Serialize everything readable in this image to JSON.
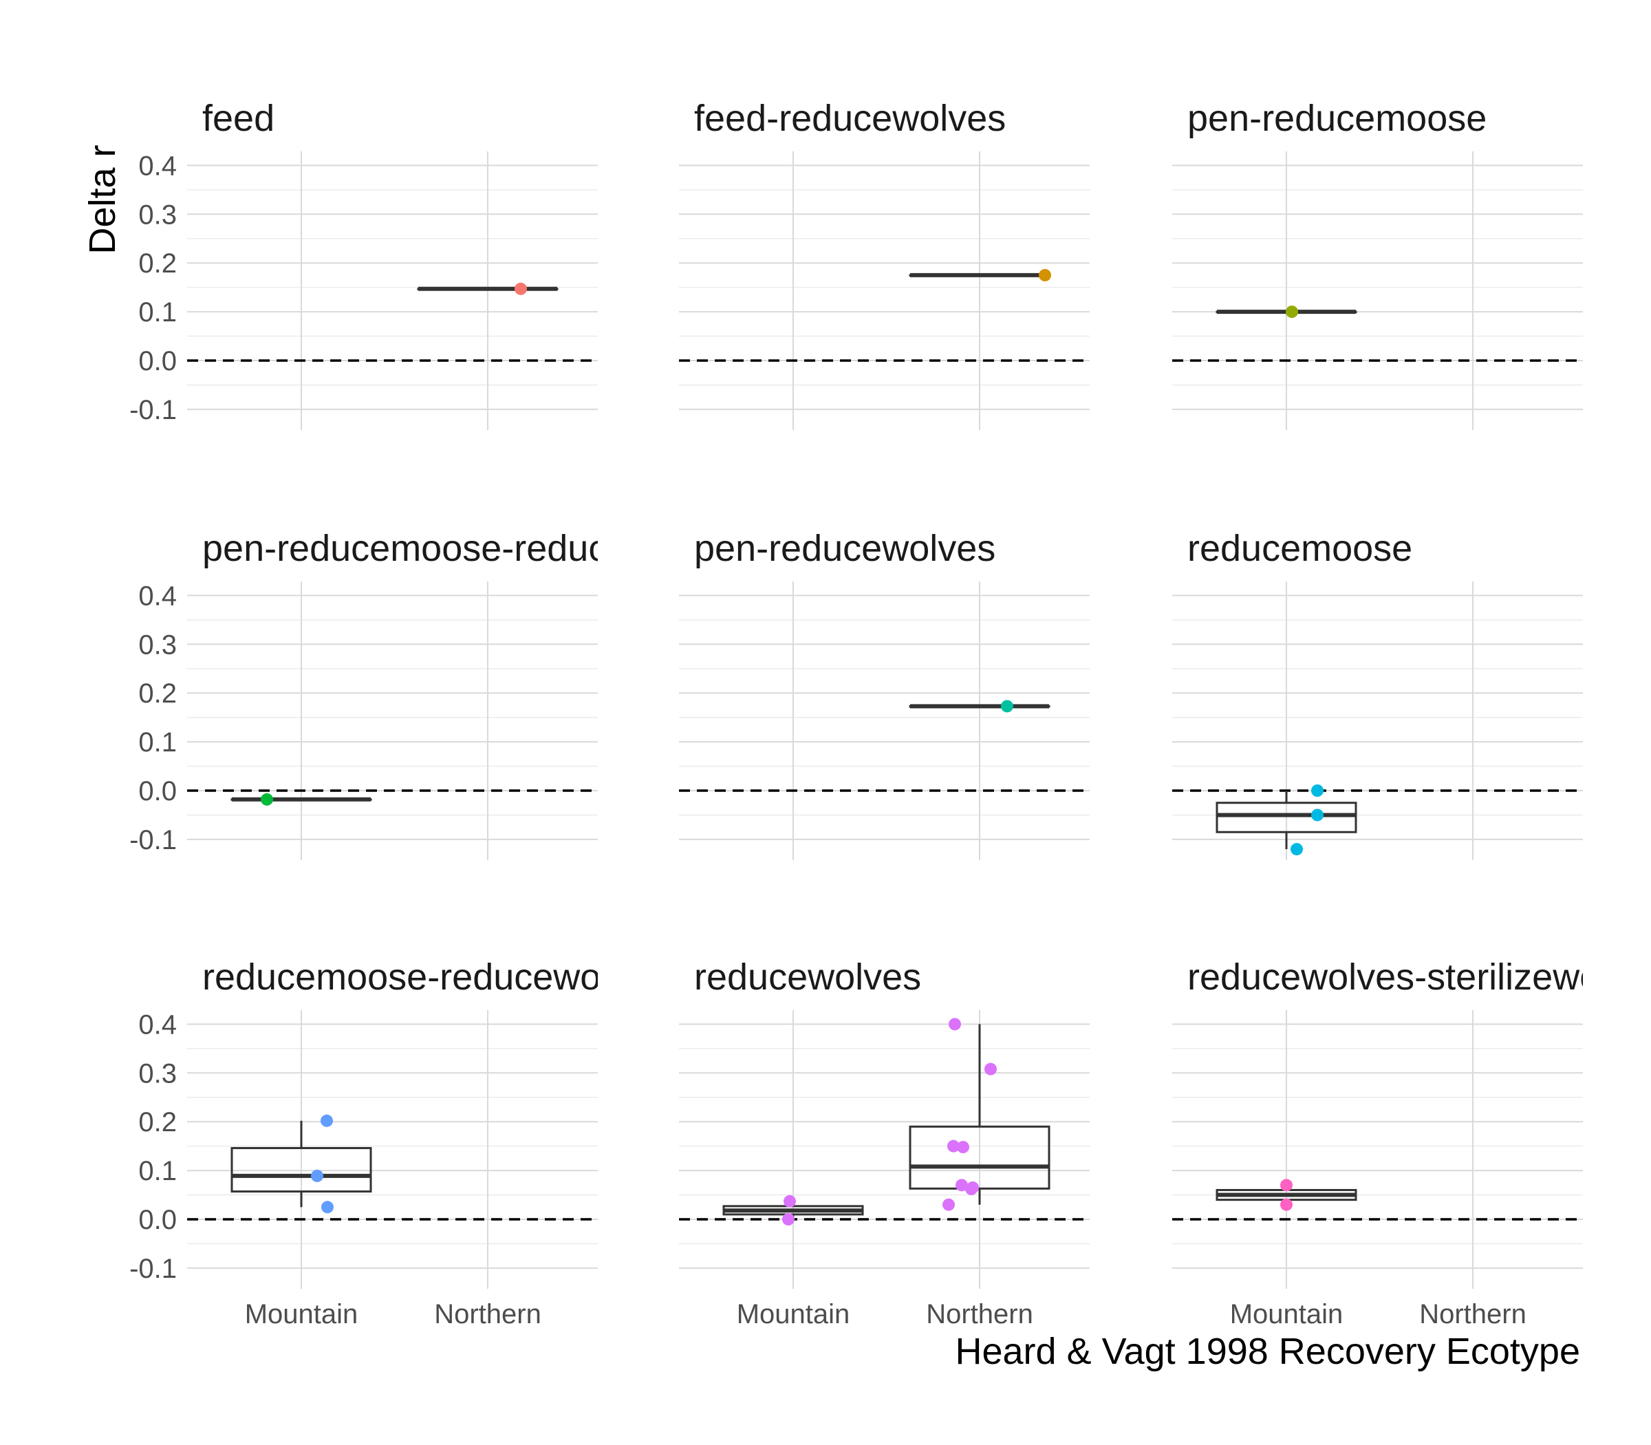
{
  "chart_data": {
    "type": "box",
    "xlabel": "Heard & Vagt 1998 Recovery Ecotype",
    "ylabel": "Delta r",
    "ylim": [
      -0.12,
      0.43
    ],
    "yticks": [
      -0.1,
      0.0,
      0.1,
      0.2,
      0.3,
      0.4
    ],
    "ytick_labels": [
      "-0.1",
      "0.0",
      "0.1",
      "0.2",
      "0.3",
      "0.4"
    ],
    "categories": [
      "Mountain",
      "Northern"
    ],
    "reference_line": {
      "y": 0,
      "style": "dashed"
    },
    "grid": true,
    "facets": [
      {
        "title": "feed",
        "color": "#F8766D",
        "boxes": [
          {
            "category": "Northern",
            "min": 0.147,
            "q1": 0.147,
            "median": 0.147,
            "q3": 0.147,
            "max": 0.147
          }
        ],
        "points": [
          {
            "category": "Northern",
            "y": 0.147
          }
        ]
      },
      {
        "title": "feed-reducewolves",
        "color": "#D39200",
        "boxes": [
          {
            "category": "Northern",
            "min": 0.175,
            "q1": 0.175,
            "median": 0.175,
            "q3": 0.175,
            "max": 0.175
          }
        ],
        "points": [
          {
            "category": "Northern",
            "y": 0.175
          }
        ]
      },
      {
        "title": "pen-reducemoose",
        "color": "#93AA00",
        "boxes": [
          {
            "category": "Mountain",
            "min": 0.1,
            "q1": 0.1,
            "median": 0.1,
            "q3": 0.1,
            "max": 0.1
          }
        ],
        "points": [
          {
            "category": "Mountain",
            "y": 0.1
          }
        ]
      },
      {
        "title": "pen-reducemoose-reduce",
        "color": "#00BA38",
        "boxes": [
          {
            "category": "Mountain",
            "min": -0.018,
            "q1": -0.018,
            "median": -0.018,
            "q3": -0.018,
            "max": -0.018
          }
        ],
        "points": [
          {
            "category": "Mountain",
            "y": -0.018
          }
        ]
      },
      {
        "title": "pen-reducewolves",
        "color": "#00C19F",
        "boxes": [
          {
            "category": "Northern",
            "min": 0.173,
            "q1": 0.173,
            "median": 0.173,
            "q3": 0.173,
            "max": 0.173
          }
        ],
        "points": [
          {
            "category": "Northern",
            "y": 0.173
          }
        ]
      },
      {
        "title": "reducemoose",
        "color": "#00B9E3",
        "boxes": [
          {
            "category": "Mountain",
            "min": -0.12,
            "q1": -0.085,
            "median": -0.05,
            "q3": -0.025,
            "max": 0.0
          }
        ],
        "points": [
          {
            "category": "Mountain",
            "y": 0.0
          },
          {
            "category": "Mountain",
            "y": -0.05
          },
          {
            "category": "Mountain",
            "y": -0.12
          }
        ]
      },
      {
        "title": "reducemoose-reducewolv",
        "color": "#619CFF",
        "boxes": [
          {
            "category": "Mountain",
            "min": 0.025,
            "q1": 0.057,
            "median": 0.089,
            "q3": 0.146,
            "max": 0.202
          }
        ],
        "points": [
          {
            "category": "Mountain",
            "y": 0.202
          },
          {
            "category": "Mountain",
            "y": 0.089
          },
          {
            "category": "Mountain",
            "y": 0.025
          }
        ]
      },
      {
        "title": "reducewolves",
        "color": "#DB72FB",
        "boxes": [
          {
            "category": "Mountain",
            "min": 0.0,
            "q1": 0.01,
            "median": 0.018,
            "q3": 0.027,
            "max": 0.037
          },
          {
            "category": "Northern",
            "min": 0.03,
            "q1": 0.063,
            "median": 0.108,
            "q3": 0.19,
            "max": 0.4
          }
        ],
        "points": [
          {
            "category": "Mountain",
            "y": 0.037
          },
          {
            "category": "Mountain",
            "y": 0.0
          },
          {
            "category": "Northern",
            "y": 0.4
          },
          {
            "category": "Northern",
            "y": 0.308
          },
          {
            "category": "Northern",
            "y": 0.15
          },
          {
            "category": "Northern",
            "y": 0.148
          },
          {
            "category": "Northern",
            "y": 0.07
          },
          {
            "category": "Northern",
            "y": 0.065
          },
          {
            "category": "Northern",
            "y": 0.062
          },
          {
            "category": "Northern",
            "y": 0.03
          }
        ]
      },
      {
        "title": "reducewolves-sterilizewo",
        "color": "#FF61C3",
        "boxes": [
          {
            "category": "Mountain",
            "min": 0.03,
            "q1": 0.04,
            "median": 0.05,
            "q3": 0.06,
            "max": 0.07
          }
        ],
        "points": [
          {
            "category": "Mountain",
            "y": 0.07
          },
          {
            "category": "Mountain",
            "y": 0.03
          }
        ]
      }
    ]
  }
}
